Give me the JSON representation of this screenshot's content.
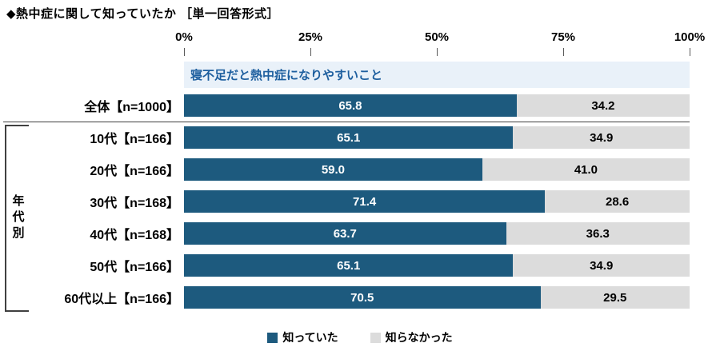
{
  "title": "◆熱中症に関して知っていたか ［単一回答形式］",
  "question": "寝不足だと熱中症になりやすいこと",
  "group_label": "年代別",
  "colors": {
    "knew": "#1d5a7e",
    "unknown": "#dcdcdc",
    "question_bg": "#e9f1f9",
    "question_text": "#1e5f9f"
  },
  "legend": [
    {
      "label": "知っていた",
      "color": "#1d5a7e"
    },
    {
      "label": "知らなかった",
      "color": "#dcdcdc"
    }
  ],
  "chart_data": {
    "type": "bar",
    "orientation": "horizontal-stacked",
    "title": "寝不足だと熱中症になりやすいこと",
    "categories": [
      "全体【n=1000】",
      "10代【n=166】",
      "20代【n=166】",
      "30代【n=168】",
      "40代【n=168】",
      "50代【n=166】",
      "60代以上【n=166】"
    ],
    "series": [
      {
        "name": "知っていた",
        "color": "#1d5a7e",
        "values": [
          65.8,
          65.1,
          59.0,
          71.4,
          63.7,
          65.1,
          70.5
        ]
      },
      {
        "name": "知らなかった",
        "color": "#dcdcdc",
        "values": [
          34.2,
          34.9,
          41.0,
          28.6,
          36.3,
          34.9,
          29.5
        ]
      }
    ],
    "xlim": [
      0,
      100
    ],
    "x_ticks": [
      "0%",
      "25%",
      "50%",
      "75%",
      "100%"
    ],
    "legend_position": "bottom",
    "grid": false
  }
}
